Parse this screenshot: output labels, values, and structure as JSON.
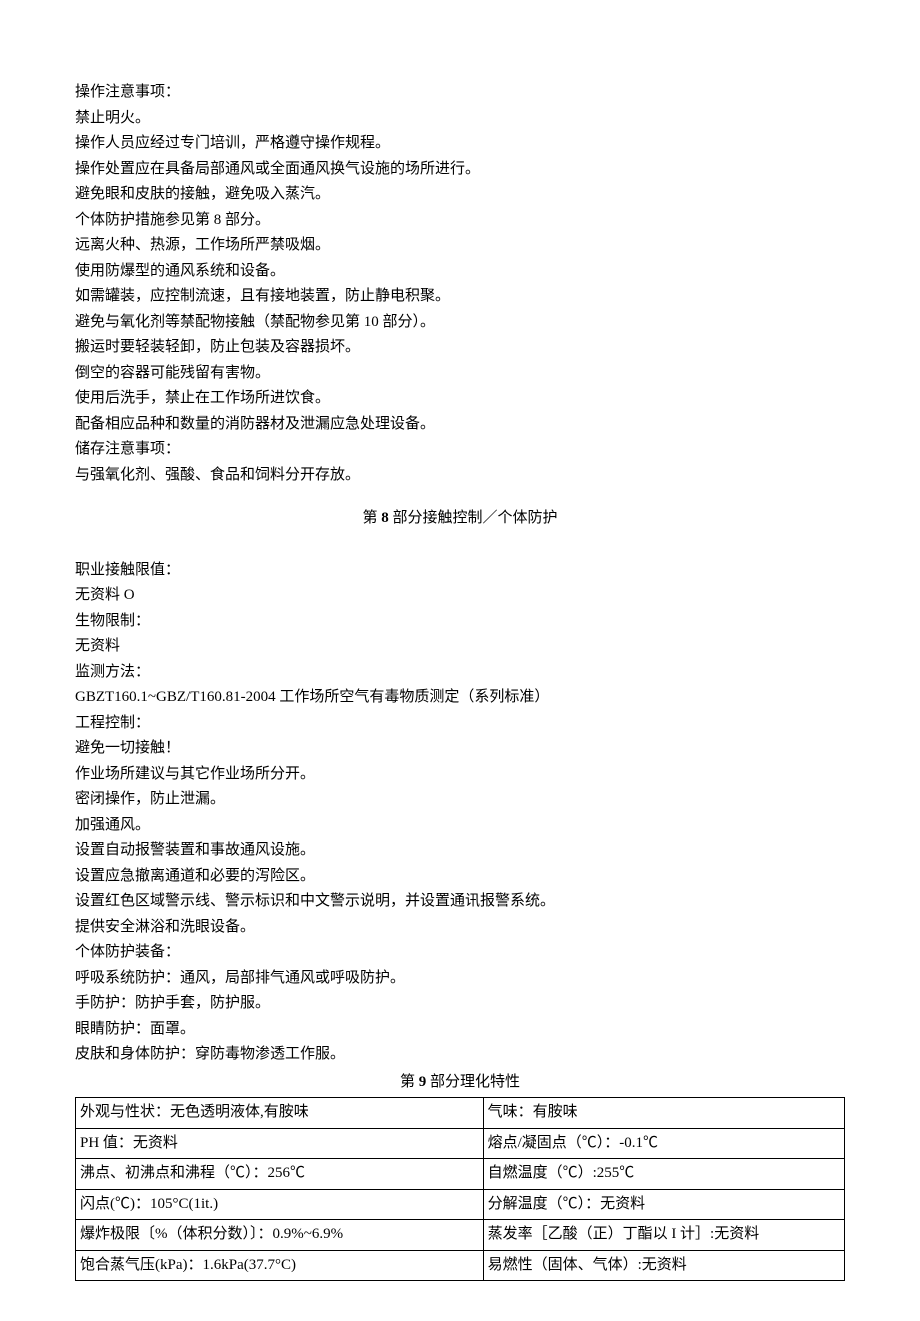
{
  "section7": {
    "lines": [
      "操作注意事项：",
      "禁止明火。",
      "操作人员应经过专门培训，严格遵守操作规程。",
      "操作处置应在具备局部通风或全面通风换气设施的场所进行。",
      "避免眼和皮肤的接触，避免吸入蒸汽。",
      "个体防护措施参见第 8 部分。",
      "远离火种、热源，工作场所严禁吸烟。",
      "使用防爆型的通风系统和设备。",
      "如需罐装，应控制流速，且有接地装置，防止静电积聚。",
      "避免与氧化剂等禁配物接触（禁配物参见第 10 部分）。",
      "搬运时要轻装轻卸，防止包装及容器损坏。",
      "倒空的容器可能残留有害物。",
      "使用后洗手，禁止在工作场所进饮食。",
      "配备相应品种和数量的消防器材及泄漏应急处理设备。",
      "储存注意事项：",
      "与强氧化剂、强酸、食品和饲料分开存放。"
    ]
  },
  "section8": {
    "title_prefix": "第 ",
    "title_num": "8",
    "title_suffix": " 部分接触控制／个体防护",
    "lines": [
      "职业接触限值：",
      "无资料 O",
      "生物限制：",
      "无资料",
      "监测方法：",
      "GBZT160.1~GBZ/T160.81-2004 工作场所空气有毒物质测定（系列标准）",
      "工程控制：",
      "避免一切接触！",
      "作业场所建议与其它作业场所分开。",
      "密闭操作，防止泄漏。",
      "加强通风。",
      "设置自动报警装置和事故通风设施。",
      "设置应急撤离通道和必要的泻险区。",
      "设置红色区域警示线、警示标识和中文警示说明，并设置通讯报警系统。",
      "提供安全淋浴和洗眼设备。",
      "个体防护装备：",
      "呼吸系统防护：通风，局部排气通风或呼吸防护。",
      "手防护：防护手套，防护服。",
      "眼睛防护：面罩。",
      "皮肤和身体防护：穿防毒物渗透工作服。"
    ]
  },
  "section9": {
    "title_prefix": "第 ",
    "title_num": "9",
    "title_suffix": " 部分理化特性",
    "rows": [
      [
        "外观与性状：无色透明液体,有胺味",
        "气味：有胺味"
      ],
      [
        "PH 值：无资料",
        "熔点/凝固点（℃）：-0.1℃"
      ],
      [
        "沸点、初沸点和沸程（℃）：256℃",
        "自燃温度（℃）:255℃"
      ],
      [
        "闪点(℃)：105°C(1it.)",
        "分解温度（℃）：无资料"
      ],
      [
        "爆炸极限〔%（体积分数）〕：0.9%~6.9%",
        "蒸发率［乙酸（正）丁酯以 I 计］:无资料"
      ],
      [
        "饱合蒸气压(kPa)：1.6kPa(37.7°C)",
        "易燃性（固体、气体）:无资料"
      ]
    ]
  }
}
